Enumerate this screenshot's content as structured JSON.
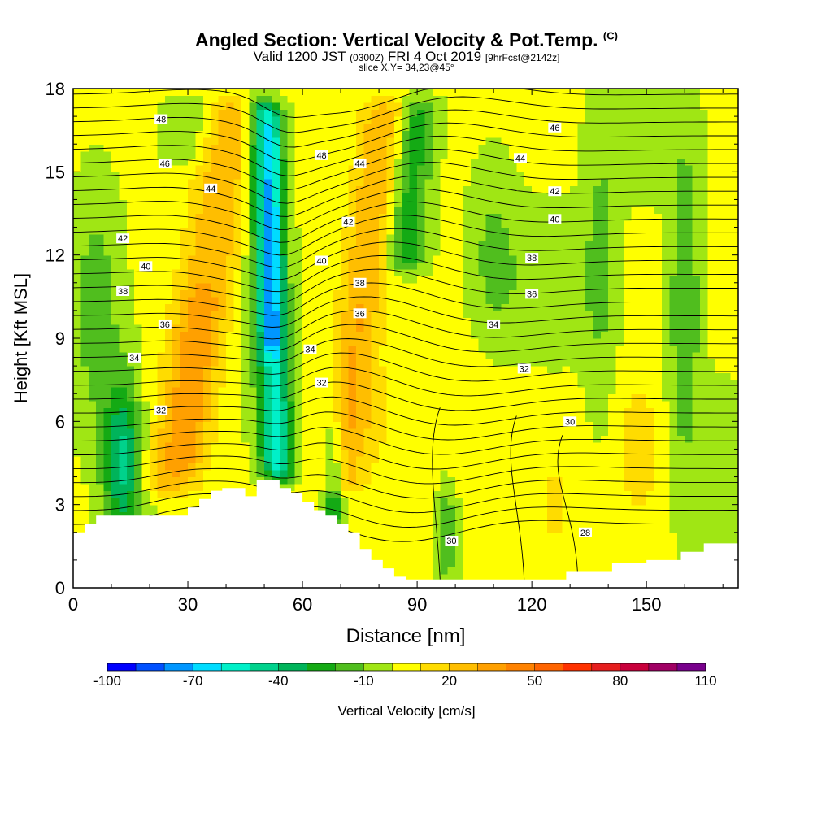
{
  "title": {
    "main": "Angled Section: Vertical Velocity & Pot.Temp.",
    "unit_tag": "(C)",
    "valid_prefix": "Valid 1200 JST",
    "valid_utc": "(0300Z)",
    "valid_date": "FRI 4 Oct 2019",
    "forecast": "[9hrFcst@2142z]",
    "slice": "slice X,Y= 34,23@45°"
  },
  "chart_data": {
    "type": "heatmap",
    "xlabel": "Distance [nm]",
    "ylabel": "Height [Kft MSL]",
    "xlim": [
      0,
      174
    ],
    "ylim": [
      0,
      18
    ],
    "xticks": [
      0,
      30,
      60,
      90,
      120,
      150
    ],
    "yticks": [
      0,
      3,
      6,
      9,
      12,
      15,
      18
    ],
    "colorbar": {
      "label": "Vertical Velocity [cm/s]",
      "tick_labels": [
        "-100",
        "-70",
        "-40",
        "-10",
        "20",
        "50",
        "80",
        "110"
      ],
      "levels": [
        -100,
        -90,
        -80,
        -70,
        -60,
        -50,
        -40,
        -30,
        -20,
        -10,
        0,
        10,
        20,
        30,
        40,
        50,
        60,
        70,
        80,
        90,
        100,
        110
      ],
      "colors": [
        "#0000ff",
        "#0050ff",
        "#0096ff",
        "#00dcff",
        "#00f0c8",
        "#00d28c",
        "#00b45a",
        "#14aa14",
        "#50be1e",
        "#a0e614",
        "#ffff00",
        "#ffdc00",
        "#ffbe00",
        "#ffa000",
        "#ff8200",
        "#ff6400",
        "#ff3200",
        "#e61e1e",
        "#c8003c",
        "#a00064",
        "#78008c"
      ]
    },
    "vertical_velocity": {
      "note_units": "cm/s",
      "x": [
        0,
        3,
        6,
        9,
        12,
        15,
        18,
        21,
        24,
        27,
        30,
        33,
        36,
        39,
        42,
        45,
        48,
        51,
        54,
        57,
        60,
        63,
        66,
        69,
        72,
        75,
        78,
        81,
        84,
        87,
        90,
        93,
        96,
        99,
        102,
        105,
        108,
        111,
        114,
        117,
        120,
        123,
        126,
        129,
        132,
        135,
        138,
        141,
        144,
        147,
        150,
        153,
        156,
        159,
        162,
        165,
        168,
        171,
        174
      ],
      "y": [
        0,
        1,
        2,
        3,
        4,
        5,
        6,
        7,
        8,
        9,
        10,
        11,
        12,
        13,
        14,
        15,
        16,
        17,
        18
      ]
    },
    "theta_contours": [
      {
        "value": 28,
        "label": "28"
      },
      {
        "value": 30,
        "label": "30"
      },
      {
        "value": 32,
        "label": "32"
      },
      {
        "value": 34,
        "label": "34"
      },
      {
        "value": 36,
        "label": "36"
      },
      {
        "value": 38,
        "label": "38"
      },
      {
        "value": 40,
        "label": "40"
      },
      {
        "value": 42,
        "label": "42"
      },
      {
        "value": 44,
        "label": "44"
      },
      {
        "value": 46,
        "label": "46"
      },
      {
        "value": 48,
        "label": "48"
      }
    ],
    "contour_labels": [
      {
        "text": "48",
        "x": 23,
        "y": 16.9
      },
      {
        "text": "46",
        "x": 24,
        "y": 15.3
      },
      {
        "text": "44",
        "x": 36,
        "y": 14.4
      },
      {
        "text": "42",
        "x": 13,
        "y": 12.6
      },
      {
        "text": "40",
        "x": 19,
        "y": 11.6
      },
      {
        "text": "38",
        "x": 13,
        "y": 10.7
      },
      {
        "text": "36",
        "x": 24,
        "y": 9.5
      },
      {
        "text": "34",
        "x": 16,
        "y": 8.3
      },
      {
        "text": "32",
        "x": 23,
        "y": 6.4
      },
      {
        "text": "48",
        "x": 65,
        "y": 15.6
      },
      {
        "text": "44",
        "x": 75,
        "y": 15.3
      },
      {
        "text": "42",
        "x": 72,
        "y": 13.2
      },
      {
        "text": "40",
        "x": 65,
        "y": 11.8
      },
      {
        "text": "38",
        "x": 75,
        "y": 11.0
      },
      {
        "text": "36",
        "x": 75,
        "y": 9.9
      },
      {
        "text": "34",
        "x": 62,
        "y": 8.6
      },
      {
        "text": "32",
        "x": 65,
        "y": 7.4
      },
      {
        "text": "46",
        "x": 126,
        "y": 16.6
      },
      {
        "text": "44",
        "x": 117,
        "y": 15.5
      },
      {
        "text": "42",
        "x": 126,
        "y": 14.3
      },
      {
        "text": "40",
        "x": 126,
        "y": 13.3
      },
      {
        "text": "38",
        "x": 120,
        "y": 11.9
      },
      {
        "text": "36",
        "x": 120,
        "y": 10.6
      },
      {
        "text": "34",
        "x": 110,
        "y": 9.5
      },
      {
        "text": "32",
        "x": 118,
        "y": 7.9
      },
      {
        "text": "30",
        "x": 130,
        "y": 6.0
      },
      {
        "text": "30",
        "x": 99,
        "y": 1.7
      },
      {
        "text": "28",
        "x": 134,
        "y": 2.0
      }
    ],
    "terrain_profile": {
      "x": [
        0,
        3,
        3,
        6,
        6,
        9,
        9,
        12,
        12,
        15,
        15,
        18,
        18,
        21,
        21,
        24,
        24,
        27,
        27,
        30,
        30,
        33,
        33,
        36,
        36,
        39,
        39,
        42,
        42,
        45,
        45,
        48,
        48,
        51,
        51,
        54,
        54,
        57,
        57,
        60,
        60,
        63,
        63,
        66,
        66,
        69,
        69,
        72,
        72,
        75,
        75,
        78,
        78,
        81,
        81,
        84,
        84,
        87,
        87,
        90,
        90,
        93,
        93,
        96,
        96,
        99,
        99,
        102,
        102,
        105,
        105,
        108,
        108,
        111,
        111,
        114,
        114,
        117,
        117,
        120,
        120,
        123,
        123,
        126,
        126,
        129,
        129,
        132,
        132,
        135,
        135,
        138,
        138,
        141,
        141,
        144,
        144,
        147,
        147,
        150,
        150,
        153,
        153,
        156,
        156,
        159,
        159,
        162,
        162,
        165,
        165,
        168,
        168,
        171,
        171,
        174
      ],
      "h": [
        2.0,
        2.0,
        2.3,
        2.3,
        2.6,
        2.6,
        2.6,
        2.6,
        2.6,
        2.6,
        2.6,
        2.6,
        2.6,
        2.6,
        2.6,
        2.6,
        2.6,
        2.6,
        2.6,
        2.6,
        2.9,
        2.9,
        3.2,
        3.2,
        3.5,
        3.5,
        3.6,
        3.6,
        3.6,
        3.6,
        3.3,
        3.3,
        3.9,
        3.9,
        3.9,
        3.9,
        3.6,
        3.6,
        3.4,
        3.4,
        3.1,
        3.1,
        2.8,
        2.8,
        2.6,
        2.6,
        2.3,
        2.3,
        2.0,
        2.0,
        1.4,
        1.4,
        1.0,
        1.0,
        0.7,
        0.7,
        0.4,
        0.4,
        0.3,
        0.3,
        0.3,
        0.3,
        0.3,
        0.3,
        0.3,
        0.3,
        0.3,
        0.3,
        0.3,
        0.3,
        0.3,
        0.3,
        0.3,
        0.3,
        0.3,
        0.3,
        0.3,
        0.3,
        0.3,
        0.3,
        0.3,
        0.3,
        0.3,
        0.3,
        0.3,
        0.3,
        0.6,
        0.6,
        0.6,
        0.6,
        0.6,
        0.6,
        0.6,
        0.6,
        0.9,
        0.9,
        0.9,
        0.9,
        0.9,
        0.9,
        1.0,
        1.0,
        1.0,
        1.0,
        1.0,
        1.0,
        1.3,
        1.3,
        1.3,
        1.3,
        1.6,
        1.6,
        1.6,
        1.6,
        1.6,
        1.6
      ]
    }
  }
}
